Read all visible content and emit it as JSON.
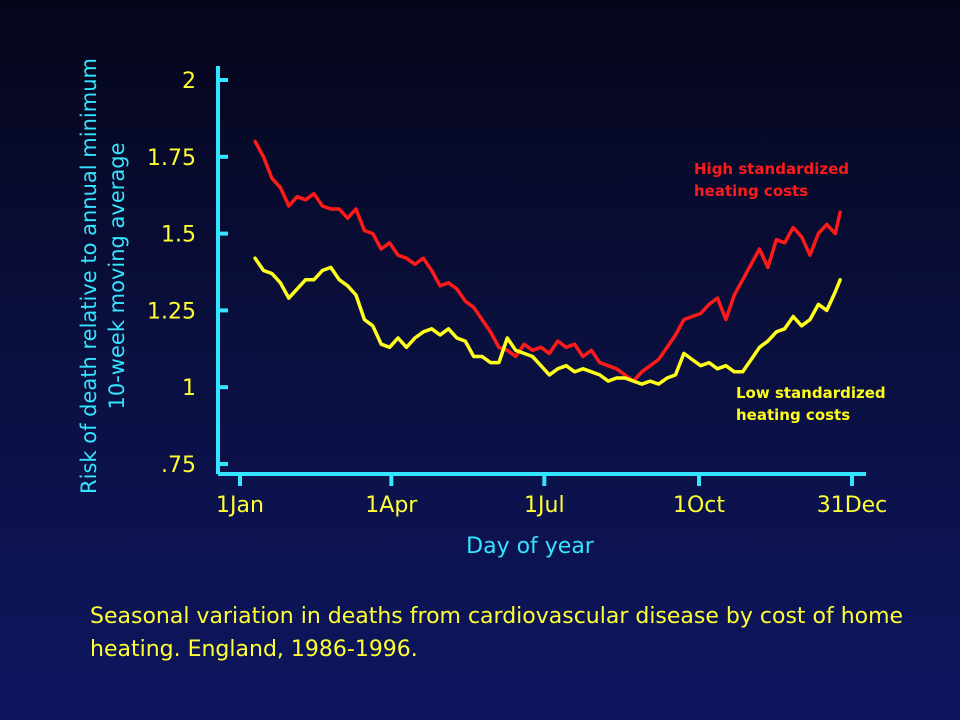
{
  "chart_data": {
    "type": "line",
    "xlabel": "Day of year",
    "ylabel": [
      "Risk of death relative to annual minimum",
      "10-week moving average"
    ],
    "x_ticks": [
      {
        "label": "1Jan",
        "day": 1
      },
      {
        "label": "1Apr",
        "day": 91
      },
      {
        "label": "1Jul",
        "day": 182
      },
      {
        "label": "1Oct",
        "day": 274
      },
      {
        "label": "31Dec",
        "day": 365
      }
    ],
    "xlim": [
      1,
      365
    ],
    "y_ticks": [
      {
        "label": ".75",
        "value": 0.75
      },
      {
        "label": "1",
        "value": 1
      },
      {
        "label": "1.25",
        "value": 1.25
      },
      {
        "label": "1.5",
        "value": 1.5
      },
      {
        "label": "1.75",
        "value": 1.75
      },
      {
        "label": "2",
        "value": 2
      }
    ],
    "ylim": [
      0.75,
      2
    ],
    "grid": false,
    "series": [
      {
        "name": [
          "High standardized",
          "heating costs"
        ],
        "color": "#ff1a1a",
        "x": [
          10,
          15,
          20,
          25,
          30,
          35,
          40,
          45,
          50,
          55,
          60,
          65,
          70,
          75,
          80,
          85,
          90,
          95,
          100,
          105,
          110,
          115,
          120,
          125,
          130,
          135,
          140,
          145,
          150,
          155,
          160,
          165,
          170,
          175,
          180,
          185,
          190,
          195,
          200,
          205,
          210,
          215,
          220,
          225,
          230,
          235,
          240,
          245,
          250,
          255,
          260,
          265,
          270,
          275,
          280,
          285,
          290,
          295,
          300,
          305,
          310,
          315,
          320,
          325,
          330,
          335,
          340,
          345,
          350,
          355,
          358
        ],
        "y": [
          1.8,
          1.75,
          1.68,
          1.65,
          1.59,
          1.62,
          1.61,
          1.63,
          1.59,
          1.58,
          1.58,
          1.55,
          1.58,
          1.51,
          1.5,
          1.45,
          1.47,
          1.43,
          1.42,
          1.4,
          1.42,
          1.38,
          1.33,
          1.34,
          1.32,
          1.28,
          1.26,
          1.22,
          1.18,
          1.13,
          1.12,
          1.1,
          1.14,
          1.12,
          1.13,
          1.11,
          1.15,
          1.13,
          1.14,
          1.1,
          1.12,
          1.08,
          1.07,
          1.06,
          1.04,
          1.02,
          1.05,
          1.07,
          1.09,
          1.13,
          1.17,
          1.22,
          1.23,
          1.24,
          1.27,
          1.29,
          1.22,
          1.3,
          1.35,
          1.4,
          1.45,
          1.39,
          1.48,
          1.47,
          1.52,
          1.49,
          1.43,
          1.5,
          1.53,
          1.5,
          1.57
        ]
      },
      {
        "name": [
          "Low standardized",
          "heating costs"
        ],
        "color": "#ffff1a",
        "x": [
          10,
          15,
          20,
          25,
          30,
          35,
          40,
          45,
          50,
          55,
          60,
          65,
          70,
          75,
          80,
          85,
          90,
          95,
          100,
          105,
          110,
          115,
          120,
          125,
          130,
          135,
          140,
          145,
          150,
          155,
          160,
          165,
          170,
          175,
          180,
          185,
          190,
          195,
          200,
          205,
          210,
          215,
          220,
          225,
          230,
          235,
          240,
          245,
          250,
          255,
          260,
          265,
          270,
          275,
          280,
          285,
          290,
          295,
          300,
          305,
          310,
          315,
          320,
          325,
          330,
          335,
          340,
          345,
          350,
          355,
          358
        ],
        "y": [
          1.42,
          1.38,
          1.37,
          1.34,
          1.29,
          1.32,
          1.35,
          1.35,
          1.38,
          1.39,
          1.35,
          1.33,
          1.3,
          1.22,
          1.2,
          1.14,
          1.13,
          1.16,
          1.13,
          1.16,
          1.18,
          1.19,
          1.17,
          1.19,
          1.16,
          1.15,
          1.1,
          1.1,
          1.08,
          1.08,
          1.16,
          1.12,
          1.11,
          1.1,
          1.07,
          1.04,
          1.06,
          1.07,
          1.05,
          1.06,
          1.05,
          1.04,
          1.02,
          1.03,
          1.03,
          1.02,
          1.01,
          1.02,
          1.01,
          1.03,
          1.04,
          1.11,
          1.09,
          1.07,
          1.08,
          1.06,
          1.07,
          1.05,
          1.05,
          1.09,
          1.13,
          1.15,
          1.18,
          1.19,
          1.23,
          1.2,
          1.22,
          1.27,
          1.25,
          1.31,
          1.35
        ]
      }
    ]
  },
  "caption": "Seasonal variation in deaths from cardiovascular disease by cost of home heating.  England, 1986-1996.",
  "colors": {
    "axis": "#33e5ff",
    "tick_text": "#ffff33",
    "ylabel_text": "#33e5ff",
    "xlabel_text": "#33e5ff",
    "caption_text": "#ffff33"
  }
}
